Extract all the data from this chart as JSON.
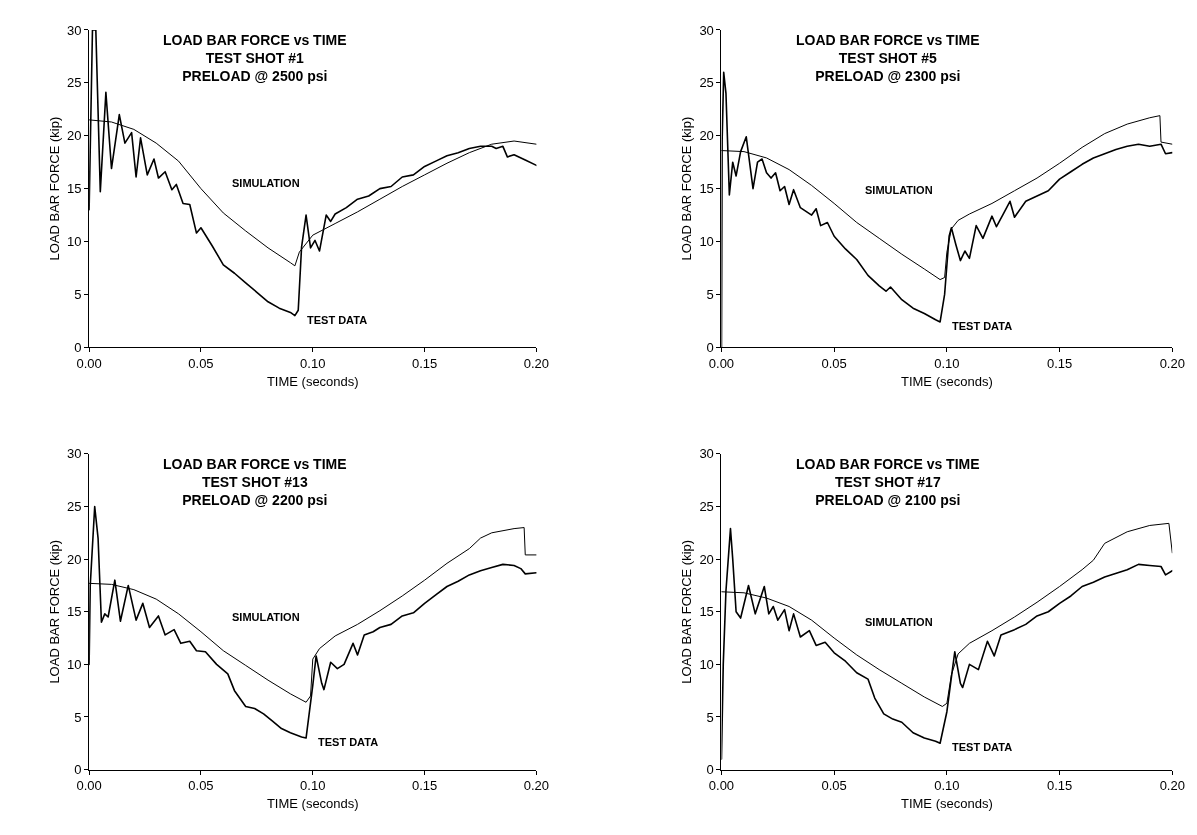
{
  "chart_data": [
    {
      "type": "line",
      "title": "LOAD BAR FORCE vs TIME\nTEST SHOT #1\nPRELOAD @ 2500 psi",
      "xlabel": "TIME (seconds)",
      "ylabel": "LOAD BAR FORCE (kip)",
      "xlim": [
        0,
        0.2
      ],
      "xticks": [
        {
          "value": 0,
          "label": "0.00"
        },
        {
          "value": 0.05,
          "label": "0.05"
        },
        {
          "value": 0.1,
          "label": "0.10"
        },
        {
          "value": 0.15,
          "label": "0.15"
        },
        {
          "value": 0.2,
          "label": "0.20"
        }
      ],
      "ylim": [
        0,
        30
      ],
      "yticks": [
        0,
        5,
        10,
        15,
        20,
        25,
        30
      ],
      "series": [
        {
          "name": "SIMULATION",
          "color": "#000000",
          "x": [
            0,
            0.01,
            0.02,
            0.03,
            0.04,
            0.05,
            0.06,
            0.07,
            0.08,
            0.09,
            0.092,
            0.094,
            0.1,
            0.11,
            0.12,
            0.13,
            0.14,
            0.15,
            0.16,
            0.17,
            0.18,
            0.19,
            0.2
          ],
          "values": [
            21.5,
            21.3,
            20.6,
            19.3,
            17.6,
            15.0,
            12.7,
            11.0,
            9.4,
            8.0,
            7.7,
            9.0,
            10.6,
            11.7,
            12.8,
            14.0,
            15.2,
            16.3,
            17.4,
            18.4,
            19.2,
            19.5,
            19.2
          ]
        },
        {
          "name": "TEST DATA",
          "color": "#000000",
          "x": [
            0,
            0.0015,
            0.003,
            0.005,
            0.0075,
            0.01,
            0.0135,
            0.016,
            0.019,
            0.021,
            0.023,
            0.026,
            0.029,
            0.031,
            0.034,
            0.037,
            0.039,
            0.042,
            0.045,
            0.048,
            0.05,
            0.055,
            0.06,
            0.065,
            0.07,
            0.075,
            0.08,
            0.085,
            0.09,
            0.092,
            0.0935,
            0.095,
            0.097,
            0.099,
            0.101,
            0.103,
            0.106,
            0.108,
            0.11,
            0.115,
            0.12,
            0.125,
            0.13,
            0.135,
            0.14,
            0.145,
            0.15,
            0.155,
            0.16,
            0.165,
            0.17,
            0.175,
            0.18,
            0.182,
            0.185,
            0.187,
            0.19,
            0.195,
            0.2
          ],
          "values": [
            13,
            30,
            30,
            14.7,
            24.1,
            16.9,
            22.0,
            19.3,
            20.3,
            16.1,
            19.8,
            16.3,
            17.8,
            16.0,
            16.6,
            14.9,
            15.4,
            13.6,
            13.5,
            10.8,
            11.3,
            9.6,
            7.8,
            7.0,
            6.1,
            5.2,
            4.3,
            3.7,
            3.3,
            3.0,
            3.5,
            9.5,
            12.5,
            9.4,
            10.1,
            9.1,
            12.5,
            11.9,
            12.6,
            13.2,
            14.0,
            14.3,
            15.0,
            15.2,
            16.1,
            16.3,
            17.1,
            17.6,
            18.1,
            18.4,
            18.8,
            19.0,
            19.0,
            18.8,
            19.0,
            18.0,
            18.2,
            17.7,
            17.2
          ]
        }
      ]
    },
    {
      "type": "line",
      "title": "LOAD BAR FORCE vs TIME\nTEST SHOT #5\nPRELOAD @ 2300 psi",
      "xlabel": "TIME (seconds)",
      "ylabel": "LOAD BAR FORCE (kip)",
      "xlim": [
        0,
        0.2
      ],
      "xticks": [
        {
          "value": 0,
          "label": "0.00"
        },
        {
          "value": 0.05,
          "label": "0.05"
        },
        {
          "value": 0.1,
          "label": "0.10"
        },
        {
          "value": 0.15,
          "label": "0.15"
        },
        {
          "value": 0.2,
          "label": "0.20"
        }
      ],
      "ylim": [
        0,
        30
      ],
      "yticks": [
        0,
        5,
        10,
        15,
        20,
        25,
        30
      ],
      "series": [
        {
          "name": "SIMULATION",
          "color": "#000000",
          "x": [
            0,
            0.01,
            0.02,
            0.03,
            0.04,
            0.05,
            0.06,
            0.07,
            0.08,
            0.09,
            0.097,
            0.099,
            0.1,
            0.102,
            0.105,
            0.11,
            0.12,
            0.13,
            0.14,
            0.15,
            0.16,
            0.17,
            0.18,
            0.19,
            0.1945,
            0.195,
            0.2
          ],
          "values": [
            18.6,
            18.5,
            17.9,
            16.8,
            15.3,
            13.6,
            11.8,
            10.3,
            8.8,
            7.4,
            6.4,
            6.6,
            9.0,
            11.2,
            12.0,
            12.6,
            13.6,
            14.8,
            16.0,
            17.4,
            18.9,
            20.2,
            21.1,
            21.7,
            21.9,
            19.4,
            19.2
          ]
        },
        {
          "name": "TEST DATA",
          "color": "#000000",
          "x": [
            0,
            0.0003,
            0.001,
            0.002,
            0.0035,
            0.005,
            0.0065,
            0.0085,
            0.011,
            0.014,
            0.016,
            0.018,
            0.02,
            0.022,
            0.024,
            0.026,
            0.028,
            0.03,
            0.032,
            0.035,
            0.04,
            0.042,
            0.044,
            0.047,
            0.05,
            0.055,
            0.06,
            0.065,
            0.07,
            0.073,
            0.075,
            0.08,
            0.085,
            0.09,
            0.095,
            0.097,
            0.099,
            0.101,
            0.102,
            0.104,
            0.106,
            0.108,
            0.11,
            0.113,
            0.116,
            0.12,
            0.122,
            0.125,
            0.128,
            0.13,
            0.135,
            0.14,
            0.145,
            0.15,
            0.155,
            0.16,
            0.165,
            0.17,
            0.175,
            0.18,
            0.185,
            0.19,
            0.195,
            0.197,
            0.2
          ],
          "values": [
            0,
            19.5,
            26.0,
            24.0,
            14.4,
            17.5,
            16.2,
            18.5,
            19.9,
            15.0,
            17.5,
            17.8,
            16.5,
            16.0,
            16.5,
            14.8,
            15.2,
            13.5,
            14.9,
            13.2,
            12.5,
            13.1,
            11.5,
            11.8,
            10.5,
            9.3,
            8.3,
            6.8,
            5.8,
            5.3,
            5.7,
            4.5,
            3.7,
            3.2,
            2.6,
            2.4,
            5.0,
            10.5,
            11.3,
            9.7,
            8.2,
            9.1,
            8.4,
            11.5,
            10.3,
            12.4,
            11.4,
            12.6,
            13.8,
            12.3,
            13.8,
            14.3,
            14.8,
            15.9,
            16.6,
            17.3,
            17.9,
            18.3,
            18.7,
            19.0,
            19.2,
            19.0,
            19.2,
            18.3,
            18.4
          ]
        }
      ]
    },
    {
      "type": "line",
      "title": "LOAD BAR FORCE vs TIME\nTEST SHOT #13\nPRELOAD @ 2200 psi",
      "xlabel": "TIME (seconds)",
      "ylabel": "LOAD BAR FORCE (kip)",
      "xlim": [
        0,
        0.2
      ],
      "xticks": [
        {
          "value": 0,
          "label": "0.00"
        },
        {
          "value": 0.05,
          "label": "0.05"
        },
        {
          "value": 0.1,
          "label": "0.10"
        },
        {
          "value": 0.15,
          "label": "0.15"
        },
        {
          "value": 0.2,
          "label": "0.20"
        }
      ],
      "ylim": [
        0,
        30
      ],
      "yticks": [
        0,
        5,
        10,
        15,
        20,
        25,
        30
      ],
      "series": [
        {
          "name": "SIMULATION",
          "color": "#000000",
          "x": [
            0,
            0.01,
            0.02,
            0.03,
            0.04,
            0.05,
            0.06,
            0.07,
            0.08,
            0.09,
            0.097,
            0.099,
            0.1,
            0.103,
            0.11,
            0.12,
            0.13,
            0.14,
            0.15,
            0.16,
            0.17,
            0.175,
            0.18,
            0.19,
            0.1945,
            0.195,
            0.2
          ],
          "values": [
            17.7,
            17.6,
            17.1,
            16.2,
            14.8,
            13.1,
            11.3,
            9.9,
            8.5,
            7.2,
            6.4,
            7.0,
            10.5,
            11.5,
            12.7,
            13.8,
            15.1,
            16.5,
            18.0,
            19.6,
            21.0,
            22.0,
            22.5,
            22.9,
            23.0,
            20.4,
            20.4
          ]
        },
        {
          "name": "TEST DATA",
          "color": "#000000",
          "x": [
            0,
            0.0005,
            0.0025,
            0.004,
            0.0055,
            0.007,
            0.0085,
            0.0115,
            0.014,
            0.0175,
            0.021,
            0.024,
            0.027,
            0.031,
            0.034,
            0.038,
            0.041,
            0.045,
            0.048,
            0.052,
            0.057,
            0.062,
            0.065,
            0.07,
            0.074,
            0.078,
            0.082,
            0.086,
            0.09,
            0.095,
            0.097,
            0.1,
            0.1015,
            0.104,
            0.105,
            0.108,
            0.111,
            0.114,
            0.118,
            0.12,
            0.123,
            0.127,
            0.13,
            0.135,
            0.14,
            0.145,
            0.15,
            0.155,
            0.16,
            0.165,
            0.17,
            0.175,
            0.18,
            0.185,
            0.19,
            0.193,
            0.195,
            0.2
          ],
          "values": [
            10,
            17.5,
            25.0,
            22.0,
            14.0,
            14.8,
            14.5,
            18.0,
            14.1,
            17.5,
            14.2,
            15.8,
            13.5,
            14.6,
            12.8,
            13.3,
            12.0,
            12.2,
            11.3,
            11.2,
            10.0,
            9.1,
            7.5,
            6.0,
            5.8,
            5.3,
            4.6,
            3.9,
            3.5,
            3.1,
            3.0,
            8.0,
            10.8,
            8.2,
            7.6,
            10.2,
            9.6,
            10.0,
            12.0,
            10.9,
            12.8,
            13.1,
            13.5,
            13.8,
            14.6,
            14.9,
            15.8,
            16.6,
            17.4,
            17.9,
            18.5,
            18.9,
            19.2,
            19.5,
            19.4,
            19.1,
            18.6,
            18.7
          ]
        }
      ]
    },
    {
      "type": "line",
      "title": "LOAD BAR FORCE vs TIME\nTEST SHOT #17\nPRELOAD @ 2100 psi",
      "xlabel": "TIME (seconds)",
      "ylabel": "LOAD BAR FORCE (kip)",
      "xlim": [
        0,
        0.2
      ],
      "xticks": [
        {
          "value": 0,
          "label": "0.00"
        },
        {
          "value": 0.05,
          "label": "0.05"
        },
        {
          "value": 0.1,
          "label": "0.10"
        },
        {
          "value": 0.15,
          "label": "0.15"
        },
        {
          "value": 0.2,
          "label": "0.20"
        }
      ],
      "ylim": [
        0,
        30
      ],
      "yticks": [
        0,
        5,
        10,
        15,
        20,
        25,
        30
      ],
      "series": [
        {
          "name": "SIMULATION",
          "color": "#000000",
          "x": [
            0,
            0.01,
            0.02,
            0.03,
            0.04,
            0.05,
            0.06,
            0.07,
            0.08,
            0.09,
            0.098,
            0.1,
            0.102,
            0.105,
            0.11,
            0.12,
            0.13,
            0.14,
            0.15,
            0.16,
            0.165,
            0.17,
            0.18,
            0.19,
            0.1985,
            0.2
          ],
          "values": [
            16.9,
            16.8,
            16.3,
            15.5,
            14.2,
            12.5,
            10.9,
            9.5,
            8.2,
            6.9,
            6.0,
            6.3,
            9.0,
            11.0,
            12.0,
            13.2,
            14.5,
            15.9,
            17.4,
            19.0,
            19.9,
            21.5,
            22.6,
            23.2,
            23.4,
            20.6
          ]
        },
        {
          "name": "TEST DATA",
          "color": "#000000",
          "x": [
            0,
            0.0008,
            0.002,
            0.004,
            0.005,
            0.0065,
            0.0085,
            0.012,
            0.015,
            0.019,
            0.021,
            0.023,
            0.025,
            0.028,
            0.03,
            0.032,
            0.035,
            0.039,
            0.042,
            0.046,
            0.05,
            0.055,
            0.06,
            0.065,
            0.068,
            0.072,
            0.076,
            0.08,
            0.085,
            0.09,
            0.095,
            0.097,
            0.1,
            0.1035,
            0.106,
            0.107,
            0.11,
            0.114,
            0.118,
            0.121,
            0.124,
            0.13,
            0.135,
            0.14,
            0.145,
            0.15,
            0.155,
            0.16,
            0.165,
            0.17,
            0.18,
            0.185,
            0.19,
            0.195,
            0.197,
            0.2
          ],
          "values": [
            1,
            10,
            17,
            22.9,
            20,
            15.0,
            14.4,
            17.5,
            14.8,
            17.4,
            14.8,
            15.5,
            14.2,
            15.2,
            13.2,
            14.8,
            12.6,
            13.2,
            11.8,
            12.1,
            11.1,
            10.3,
            9.2,
            8.6,
            6.8,
            5.3,
            4.8,
            4.5,
            3.5,
            3.0,
            2.7,
            2.5,
            5.5,
            11.2,
            8.2,
            7.8,
            10.0,
            9.5,
            12.2,
            10.8,
            12.8,
            13.3,
            13.8,
            14.6,
            15.0,
            15.8,
            16.5,
            17.4,
            17.8,
            18.3,
            19.0,
            19.5,
            19.4,
            19.3,
            18.5,
            18.9
          ]
        }
      ]
    }
  ]
}
